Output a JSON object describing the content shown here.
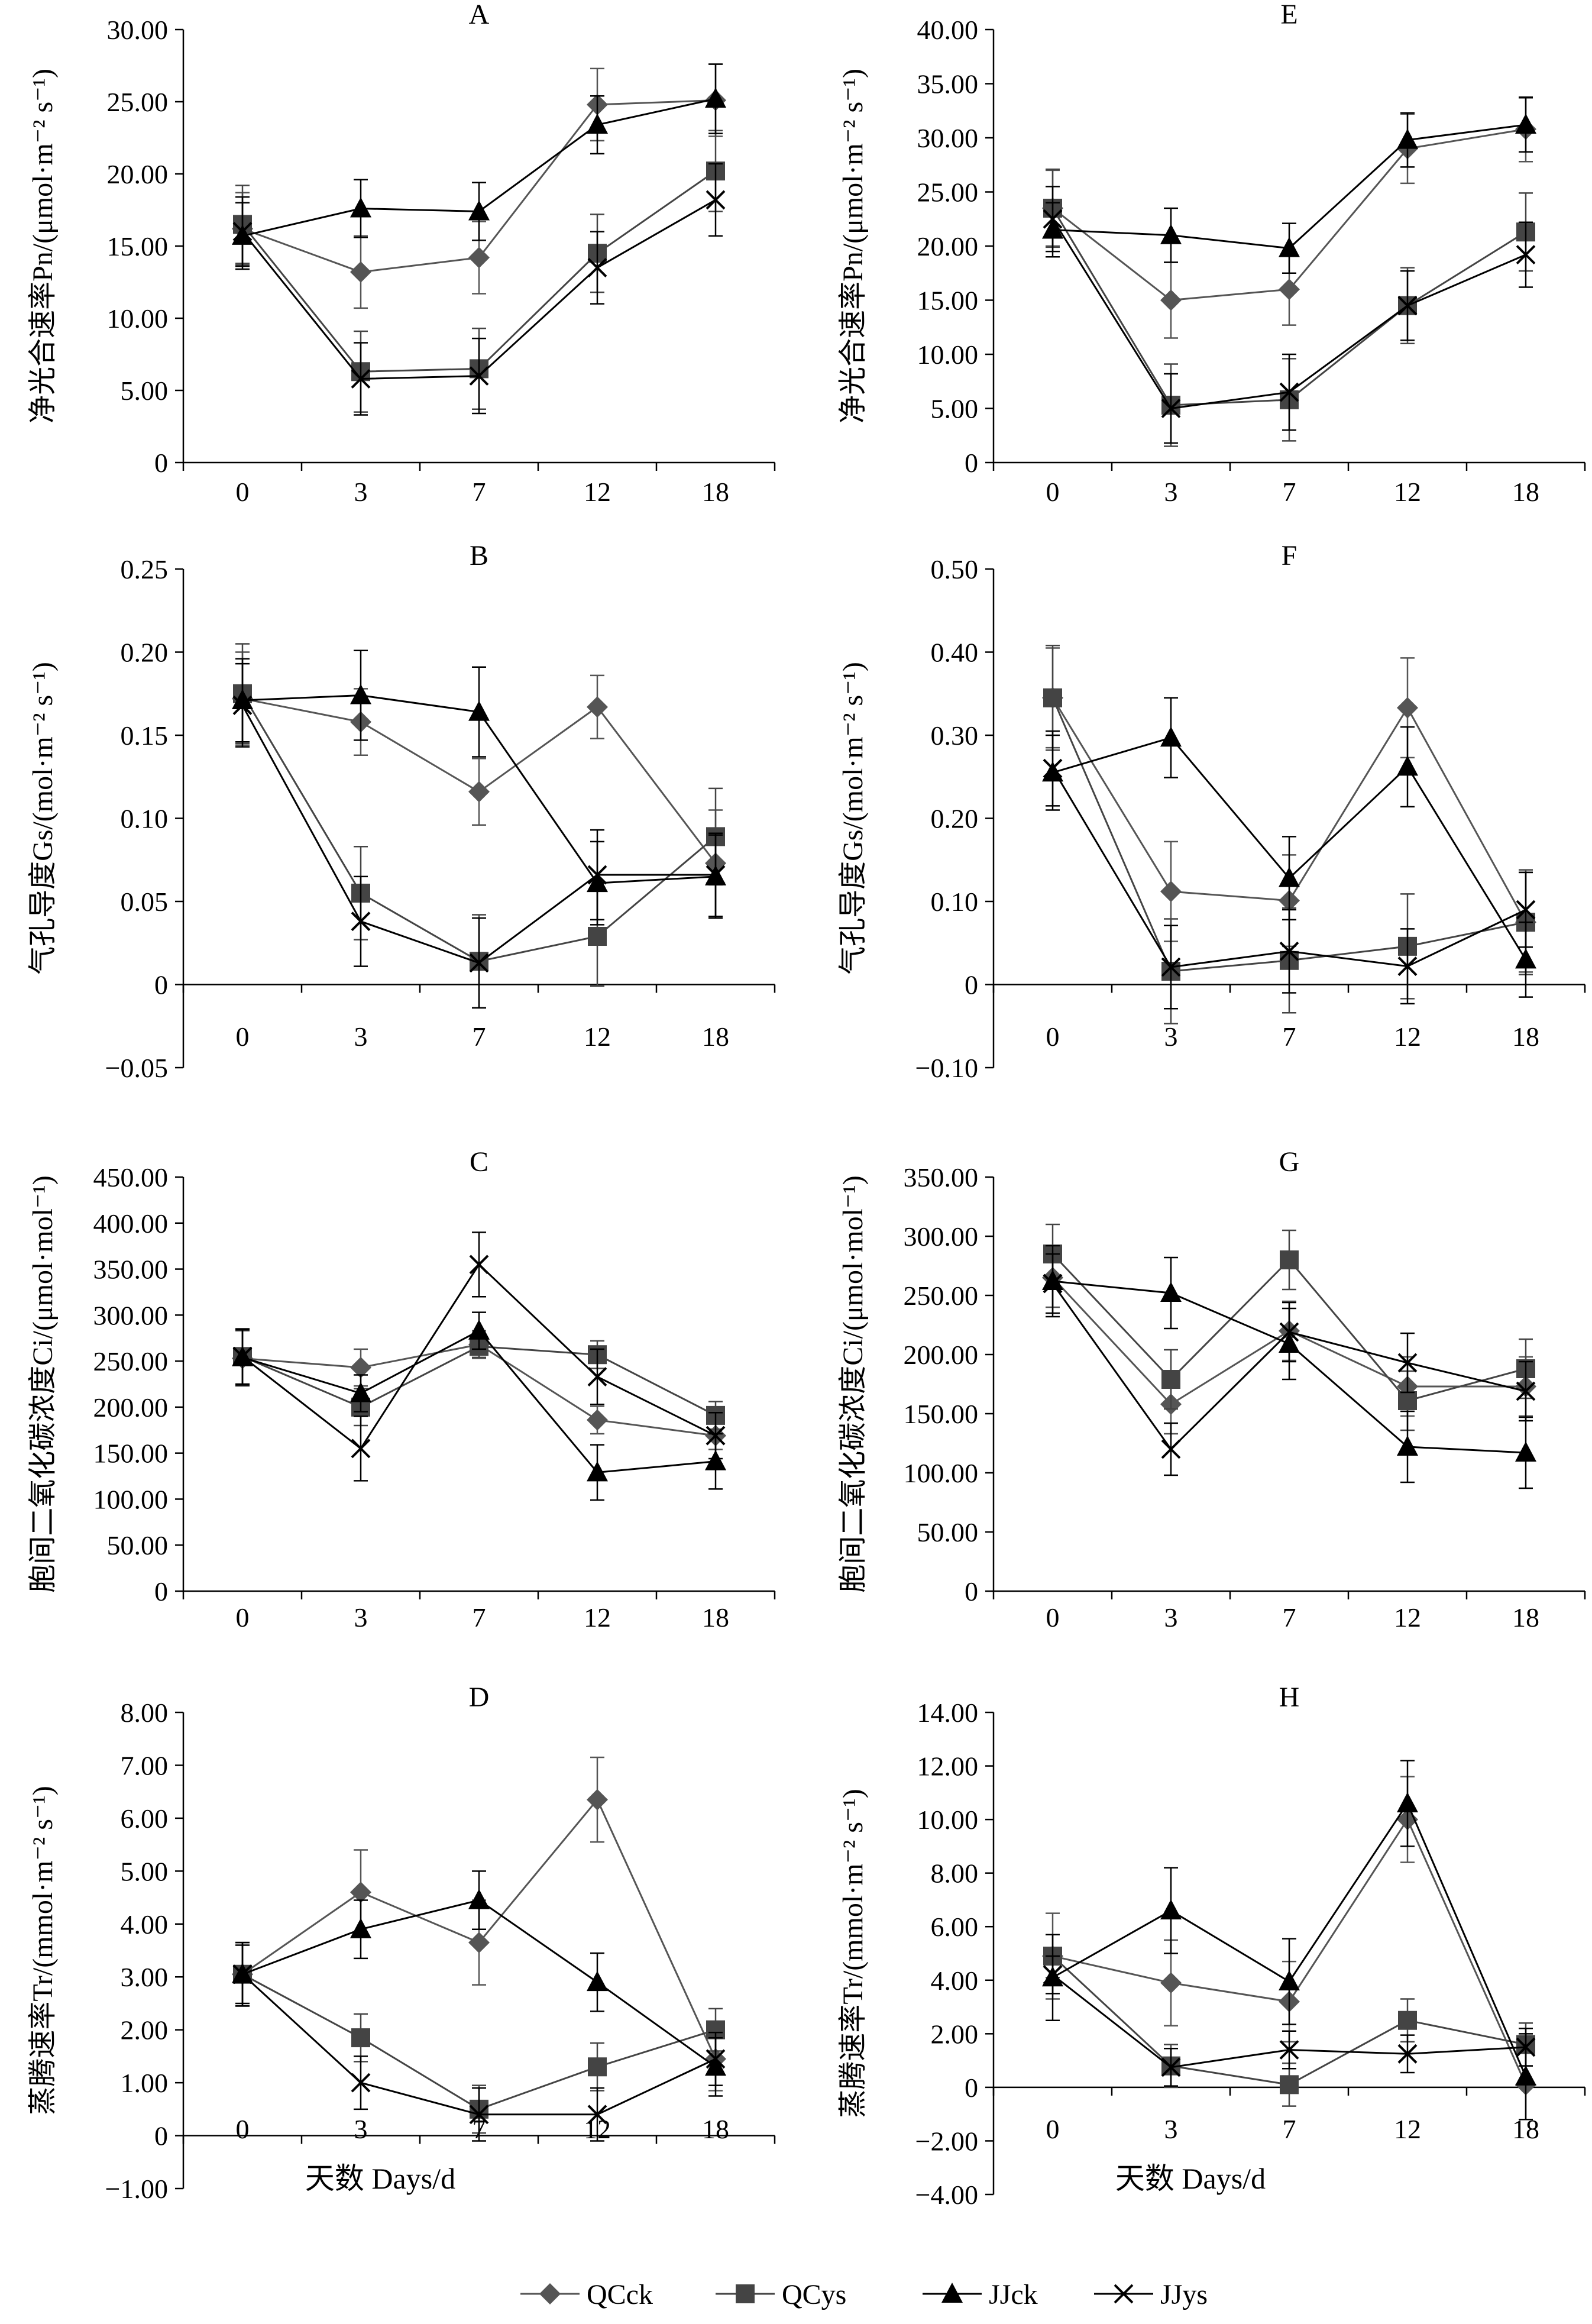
{
  "figure": {
    "x_title": "天数  Days/d",
    "legend": [
      "QCck",
      "QCys",
      "JJck",
      "JJys"
    ]
  },
  "styles": {
    "QCck": {
      "color": "#555555",
      "marker": "diamond"
    },
    "QCys": {
      "color": "#444444",
      "marker": "square"
    },
    "JJck": {
      "color": "#000000",
      "marker": "triangle"
    },
    "JJys": {
      "color": "#000000",
      "marker": "x"
    }
  },
  "chart_data": [
    {
      "type": "line",
      "letter": "A",
      "ylabel": "净光合速率Pn/(μmol·m⁻² s⁻¹)",
      "categories": [
        "0",
        "3",
        "7",
        "12",
        "18"
      ],
      "ylim": [
        0,
        30
      ],
      "yticks": [
        "0",
        "5.00",
        "10.00",
        "15.00",
        "20.00",
        "25.00",
        "30.00"
      ],
      "series": [
        {
          "name": "QCck",
          "values": [
            16.2,
            13.2,
            14.2,
            24.8,
            25.1
          ],
          "errors": [
            2.5,
            2.5,
            2.5,
            2.5,
            2.5
          ]
        },
        {
          "name": "QCys",
          "values": [
            16.5,
            6.3,
            6.5,
            14.5,
            20.2
          ],
          "errors": [
            2.7,
            2.8,
            2.8,
            2.7,
            2.8
          ]
        },
        {
          "name": "JJck",
          "values": [
            15.7,
            17.6,
            17.4,
            23.4,
            25.2
          ],
          "errors": [
            2.3,
            2.0,
            2.0,
            2.0,
            2.4
          ]
        },
        {
          "name": "JJys",
          "values": [
            16.0,
            5.8,
            6.0,
            13.5,
            18.2
          ],
          "errors": [
            2.4,
            2.5,
            2.6,
            2.5,
            2.5
          ]
        }
      ]
    },
    {
      "type": "line",
      "letter": "E",
      "ylabel": "净光合速率Pn/(μmol·m⁻² s⁻¹)",
      "categories": [
        "0",
        "3",
        "7",
        "12",
        "18"
      ],
      "ylim": [
        0,
        40
      ],
      "yticks": [
        "0",
        "5.00",
        "10.00",
        "15.00",
        "20.00",
        "25.00",
        "30.00",
        "35.00",
        "40.00"
      ],
      "series": [
        {
          "name": "QCck",
          "values": [
            23.5,
            15.0,
            16.0,
            29.0,
            30.8
          ],
          "errors": [
            3.5,
            3.5,
            3.3,
            3.2,
            3.0
          ]
        },
        {
          "name": "QCys",
          "values": [
            23.5,
            5.3,
            5.8,
            14.5,
            21.3
          ],
          "errors": [
            3.6,
            3.8,
            3.8,
            3.5,
            3.6
          ]
        },
        {
          "name": "JJck",
          "values": [
            21.5,
            21.0,
            19.8,
            29.8,
            31.2
          ],
          "errors": [
            2.5,
            2.5,
            2.3,
            2.5,
            2.5
          ]
        },
        {
          "name": "JJys",
          "values": [
            22.5,
            5.0,
            6.5,
            14.5,
            19.2
          ],
          "errors": [
            3.0,
            3.2,
            3.5,
            3.2,
            3.0
          ]
        }
      ]
    },
    {
      "type": "line",
      "letter": "B",
      "ylabel": "气孔导度Gs/(mol·m⁻² s⁻¹)",
      "categories": [
        "0",
        "3",
        "7",
        "12",
        "18"
      ],
      "ylim": [
        -0.05,
        0.25
      ],
      "yticks": [
        "−0.05",
        "0",
        "0.05",
        "0.10",
        "0.15",
        "0.20",
        "0.25"
      ],
      "series": [
        {
          "name": "QCck",
          "values": [
            0.172,
            0.158,
            0.116,
            0.167,
            0.073
          ],
          "errors": [
            0.028,
            0.02,
            0.02,
            0.019,
            0.032
          ]
        },
        {
          "name": "QCys",
          "values": [
            0.175,
            0.055,
            0.014,
            0.029,
            0.089
          ],
          "errors": [
            0.03,
            0.028,
            0.028,
            0.03,
            0.029
          ]
        },
        {
          "name": "JJck",
          "values": [
            0.171,
            0.174,
            0.164,
            0.061,
            0.065
          ],
          "errors": [
            0.025,
            0.027,
            0.027,
            0.025,
            0.025
          ]
        },
        {
          "name": "JJys",
          "values": [
            0.168,
            0.038,
            0.013,
            0.066,
            0.066
          ],
          "errors": [
            0.025,
            0.027,
            0.027,
            0.027,
            0.025
          ]
        }
      ]
    },
    {
      "type": "line",
      "letter": "F",
      "ylabel": "气孔导度Gs/(mol·m⁻² s⁻¹)",
      "categories": [
        "0",
        "3",
        "7",
        "12",
        "18"
      ],
      "ylim": [
        -0.1,
        0.5
      ],
      "yticks": [
        "−0.10",
        "0",
        "0.10",
        "0.20",
        "0.30",
        "0.40",
        "0.50"
      ],
      "series": [
        {
          "name": "QCck",
          "values": [
            0.345,
            0.112,
            0.101,
            0.333,
            0.075
          ],
          "errors": [
            0.06,
            0.06,
            0.055,
            0.06,
            0.06
          ]
        },
        {
          "name": "QCys",
          "values": [
            0.345,
            0.016,
            0.029,
            0.046,
            0.075
          ],
          "errors": [
            0.063,
            0.063,
            0.063,
            0.063,
            0.063
          ]
        },
        {
          "name": "JJck",
          "values": [
            0.255,
            0.297,
            0.128,
            0.262,
            0.03
          ],
          "errors": [
            0.045,
            0.048,
            0.05,
            0.048,
            0.045
          ]
        },
        {
          "name": "JJys",
          "values": [
            0.26,
            0.021,
            0.04,
            0.022,
            0.09
          ],
          "errors": [
            0.045,
            0.05,
            0.05,
            0.045,
            0.045
          ]
        }
      ]
    },
    {
      "type": "line",
      "letter": "C",
      "ylabel": "胞间二氧化碳浓度Ci/(μmol·mol⁻¹)",
      "categories": [
        "0",
        "3",
        "7",
        "12",
        "18"
      ],
      "ylim": [
        0,
        450
      ],
      "yticks": [
        "0",
        "50.00",
        "100.00",
        "150.00",
        "200.00",
        "250.00",
        "300.00",
        "350.00",
        "400.00",
        "450.00"
      ],
      "series": [
        {
          "name": "QCck",
          "values": [
            253,
            243,
            268,
            186,
            169
          ],
          "errors": [
            30,
            20,
            15,
            15,
            15
          ]
        },
        {
          "name": "QCys",
          "values": [
            255,
            200,
            266,
            257,
            191
          ],
          "errors": [
            30,
            20,
            12,
            15,
            15
          ]
        },
        {
          "name": "JJck",
          "values": [
            254,
            215,
            283,
            129,
            141
          ],
          "errors": [
            30,
            20,
            20,
            30,
            30
          ]
        },
        {
          "name": "JJys",
          "values": [
            255,
            155,
            355,
            233,
            169
          ],
          "errors": [
            30,
            35,
            35,
            30,
            25
          ]
        }
      ]
    },
    {
      "type": "line",
      "letter": "G",
      "ylabel": "胞间二氧化碳浓度Ci/(μmol·mol⁻¹)",
      "categories": [
        "0",
        "3",
        "7",
        "12",
        "18"
      ],
      "ylim": [
        0,
        350
      ],
      "yticks": [
        "0",
        "50.00",
        "100.00",
        "150.00",
        "200.00",
        "250.00",
        "300.00",
        "350.00"
      ],
      "series": [
        {
          "name": "QCck",
          "values": [
            265,
            158,
            220,
            173,
            173
          ],
          "errors": [
            25,
            25,
            25,
            25,
            25
          ]
        },
        {
          "name": "QCys",
          "values": [
            285,
            179,
            280,
            161,
            188
          ],
          "errors": [
            25,
            25,
            25,
            25,
            25
          ]
        },
        {
          "name": "JJck",
          "values": [
            262,
            252,
            209,
            122,
            117
          ],
          "errors": [
            30,
            30,
            30,
            30,
            30
          ]
        },
        {
          "name": "JJys",
          "values": [
            260,
            120,
            219,
            193,
            169
          ],
          "errors": [
            25,
            22,
            25,
            25,
            25
          ]
        }
      ]
    },
    {
      "type": "line",
      "letter": "D",
      "ylabel": "蒸腾速率Tr/(mmol·m⁻² s⁻¹)",
      "categories": [
        "0",
        "3",
        "7",
        "12",
        "18"
      ],
      "ylim": [
        -1,
        8
      ],
      "yticks": [
        "−1.00",
        "0",
        "1.00",
        "2.00",
        "3.00",
        "4.00",
        "5.00",
        "6.00",
        "7.00",
        "8.00"
      ],
      "series": [
        {
          "name": "QCck",
          "values": [
            3.05,
            4.6,
            3.65,
            6.35,
            1.45
          ],
          "errors": [
            0.6,
            0.8,
            0.8,
            0.8,
            0.6
          ]
        },
        {
          "name": "QCys",
          "values": [
            3.05,
            1.85,
            0.5,
            1.3,
            2.0
          ],
          "errors": [
            0.6,
            0.45,
            0.45,
            0.45,
            0.4
          ]
        },
        {
          "name": "JJck",
          "values": [
            3.05,
            3.9,
            4.45,
            2.9,
            1.3
          ],
          "errors": [
            0.55,
            0.55,
            0.55,
            0.55,
            0.55
          ]
        },
        {
          "name": "JJys",
          "values": [
            3.05,
            1.0,
            0.4,
            0.4,
            1.45
          ],
          "errors": [
            0.6,
            0.5,
            0.5,
            0.5,
            0.5
          ]
        }
      ]
    },
    {
      "type": "line",
      "letter": "H",
      "ylabel": "蒸腾速率Tr/(mmol·m⁻² s⁻¹)",
      "categories": [
        "0",
        "3",
        "7",
        "12",
        "18"
      ],
      "ylim": [
        -4,
        14
      ],
      "yticks": [
        "−4.00",
        "−2.00",
        "0",
        "2.00",
        "4.00",
        "6.00",
        "8.00",
        "10.00",
        "12.00",
        "14.00"
      ],
      "series": [
        {
          "name": "QCck",
          "values": [
            4.9,
            3.9,
            3.2,
            10.0,
            0.1
          ],
          "errors": [
            1.6,
            1.6,
            1.5,
            1.6,
            1.3
          ]
        },
        {
          "name": "QCys",
          "values": [
            4.9,
            0.8,
            0.1,
            2.5,
            1.6
          ],
          "errors": [
            0.8,
            0.8,
            0.8,
            0.8,
            0.8
          ]
        },
        {
          "name": "JJck",
          "values": [
            4.1,
            6.6,
            3.95,
            10.6,
            0.4
          ],
          "errors": [
            1.6,
            1.6,
            1.6,
            1.6,
            1.6
          ]
        },
        {
          "name": "JJys",
          "values": [
            4.2,
            0.75,
            1.4,
            1.25,
            1.5
          ],
          "errors": [
            0.7,
            0.7,
            0.7,
            0.7,
            0.7
          ]
        }
      ]
    }
  ]
}
